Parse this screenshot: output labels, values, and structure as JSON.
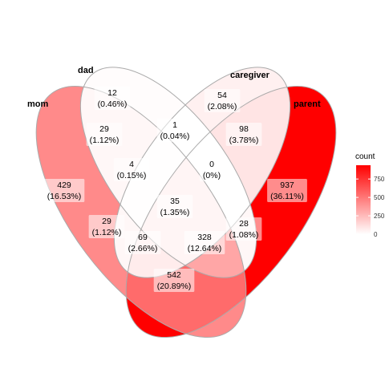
{
  "sets": [
    "mom",
    "dad",
    "caregiver",
    "parent"
  ],
  "regions": [
    {
      "id": "mom_only",
      "sets": [
        "mom"
      ],
      "count": 429,
      "pct": "(16.53%)"
    },
    {
      "id": "dad_only",
      "sets": [
        "dad"
      ],
      "count": 12,
      "pct": "(0.46%)"
    },
    {
      "id": "caregiver_only",
      "sets": [
        "caregiver"
      ],
      "count": 54,
      "pct": "(2.08%)"
    },
    {
      "id": "parent_only",
      "sets": [
        "parent"
      ],
      "count": 937,
      "pct": "(36.11%)"
    },
    {
      "id": "mom_dad",
      "sets": [
        "mom",
        "dad"
      ],
      "count": 29,
      "pct": "(1.12%)"
    },
    {
      "id": "dad_caregiver",
      "sets": [
        "dad",
        "caregiver"
      ],
      "count": 1,
      "pct": "(0.04%)"
    },
    {
      "id": "caregiver_parent",
      "sets": [
        "caregiver",
        "parent"
      ],
      "count": 98,
      "pct": "(3.78%)"
    },
    {
      "id": "mom_dad_caregiver",
      "sets": [
        "mom",
        "dad",
        "caregiver"
      ],
      "count": 4,
      "pct": "(0.15%)"
    },
    {
      "id": "dad_caregiver_parent",
      "sets": [
        "dad",
        "caregiver",
        "parent"
      ],
      "count": 0,
      "pct": "(0%)"
    },
    {
      "id": "all_four",
      "sets": [
        "mom",
        "dad",
        "caregiver",
        "parent"
      ],
      "count": 35,
      "pct": "(1.35%)"
    },
    {
      "id": "mom_caregiver",
      "sets": [
        "mom",
        "caregiver"
      ],
      "count": 29,
      "pct": "(1.12%)"
    },
    {
      "id": "dad_parent",
      "sets": [
        "dad",
        "parent"
      ],
      "count": 28,
      "pct": "(1.08%)"
    },
    {
      "id": "mom_caregiver_parent",
      "sets": [
        "mom",
        "caregiver",
        "parent"
      ],
      "count": 69,
      "pct": "(2.66%)"
    },
    {
      "id": "mom_dad_parent",
      "sets": [
        "mom",
        "dad",
        "parent"
      ],
      "count": 328,
      "pct": "(12.64%)"
    },
    {
      "id": "mom_parent",
      "sets": [
        "mom",
        "parent"
      ],
      "count": 542,
      "pct": "(20.89%)"
    }
  ],
  "legend": {
    "title": "count",
    "ticks": [
      "750",
      "500",
      "250",
      "0"
    ],
    "tick_values": [
      750,
      500,
      250,
      0
    ],
    "max": 937,
    "color_low": "#ffffff",
    "color_high": "#ff0000"
  },
  "colors": {
    "low": "#ffffff",
    "high": "#ff0000",
    "outline": "#aaaaaa"
  }
}
